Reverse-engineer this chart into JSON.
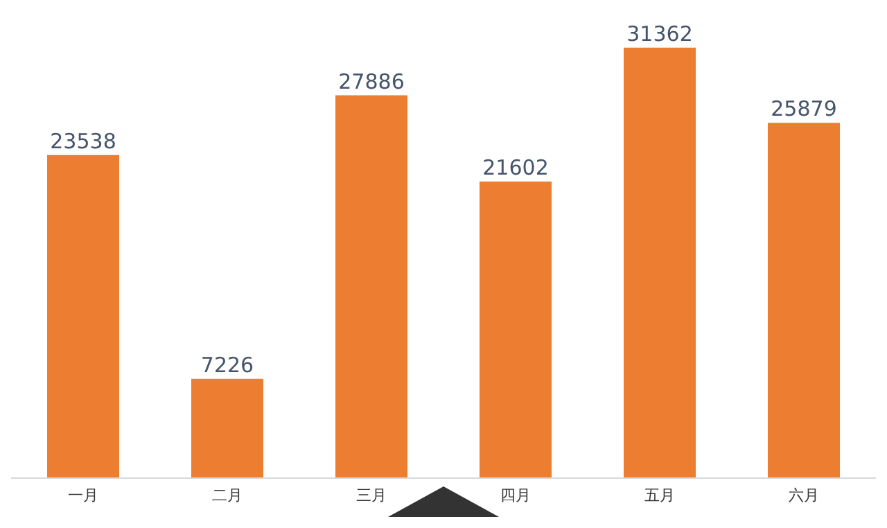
{
  "chart_data": {
    "type": "bar",
    "categories": [
      "一月",
      "二月",
      "三月",
      "四月",
      "五月",
      "六月"
    ],
    "values": [
      23538,
      7226,
      27886,
      21602,
      31362,
      25879
    ],
    "color": "#ed7d31",
    "data_labels": true,
    "tick_labels": "x"
  }
}
